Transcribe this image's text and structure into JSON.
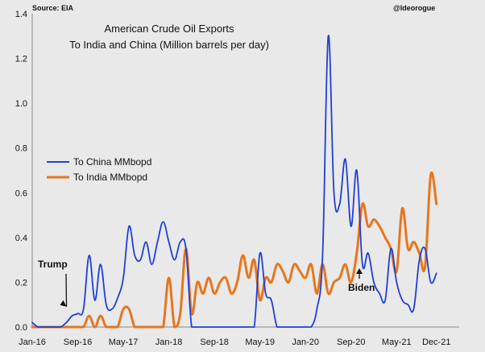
{
  "chart_data": {
    "type": "line",
    "title_lines": [
      "American Crude Oil Exports",
      "To India and China (Million barrels per day)"
    ],
    "source": "Source: EIA",
    "credit": "@ldeorogue",
    "x_tick_labels": [
      "Jan-16",
      "Sep-16",
      "May-17",
      "Jan-18",
      "Sep-18",
      "May-19",
      "Jan-20",
      "Sep-20",
      "May-21",
      "Dec-21"
    ],
    "x_tick_months": [
      0,
      8,
      16,
      24,
      32,
      40,
      48,
      56,
      64,
      71
    ],
    "y_tick_labels": [
      "0.0",
      "0.2",
      "0.4",
      "0.6",
      "0.8",
      "1.0",
      "1.2",
      "1.4"
    ],
    "ylim": [
      0,
      1.4
    ],
    "xlim_months": [
      0,
      75
    ],
    "grid": false,
    "legend_position": "middle-left",
    "annotations": [
      {
        "text": "Trump",
        "x_month": 6.3,
        "y": 0.08
      },
      {
        "text": "Biden",
        "x_month": 60.5,
        "y": 0.23
      }
    ],
    "series": [
      {
        "name": "To China MMbopd",
        "color": "#1f3fd6",
        "points": [
          [
            0,
            0.02
          ],
          [
            1,
            0.0
          ],
          [
            2,
            0.0
          ],
          [
            3,
            0.0
          ],
          [
            4,
            0.0
          ],
          [
            5,
            0.0
          ],
          [
            6,
            0.02
          ],
          [
            7,
            0.05
          ],
          [
            8,
            0.06
          ],
          [
            9,
            0.08
          ],
          [
            10,
            0.32
          ],
          [
            11,
            0.12
          ],
          [
            12,
            0.28
          ],
          [
            13,
            0.1
          ],
          [
            14,
            0.08
          ],
          [
            15,
            0.13
          ],
          [
            16,
            0.22
          ],
          [
            17,
            0.45
          ],
          [
            18,
            0.32
          ],
          [
            19,
            0.3
          ],
          [
            20,
            0.38
          ],
          [
            21,
            0.28
          ],
          [
            22,
            0.38
          ],
          [
            23,
            0.47
          ],
          [
            24,
            0.38
          ],
          [
            25,
            0.3
          ],
          [
            26,
            0.38
          ],
          [
            27,
            0.35
          ],
          [
            28,
            0.0
          ],
          [
            29,
            0.0
          ],
          [
            30,
            0.0
          ],
          [
            31,
            0.0
          ],
          [
            32,
            0.0
          ],
          [
            33,
            0.0
          ],
          [
            34,
            0.0
          ],
          [
            35,
            0.0
          ],
          [
            36,
            0.0
          ],
          [
            37,
            0.0
          ],
          [
            38,
            0.0
          ],
          [
            39,
            0.0
          ],
          [
            40,
            0.33
          ],
          [
            41,
            0.15
          ],
          [
            42,
            0.12
          ],
          [
            43,
            0.0
          ],
          [
            44,
            0.0
          ],
          [
            45,
            0.0
          ],
          [
            46,
            0.0
          ],
          [
            47,
            0.0
          ],
          [
            48,
            0.0
          ],
          [
            49,
            0.0
          ],
          [
            50,
            0.08
          ],
          [
            51,
            0.32
          ],
          [
            52,
            1.3
          ],
          [
            53,
            0.6
          ],
          [
            54,
            0.55
          ],
          [
            55,
            0.75
          ],
          [
            56,
            0.45
          ],
          [
            57,
            0.7
          ],
          [
            58,
            0.28
          ],
          [
            59,
            0.33
          ],
          [
            60,
            0.2
          ],
          [
            61,
            0.15
          ],
          [
            62,
            0.12
          ],
          [
            63,
            0.35
          ],
          [
            64,
            0.2
          ],
          [
            65,
            0.12
          ],
          [
            66,
            0.1
          ],
          [
            67,
            0.08
          ],
          [
            68,
            0.3
          ],
          [
            69,
            0.35
          ],
          [
            70,
            0.2
          ],
          [
            71,
            0.24
          ]
        ]
      },
      {
        "name": "To India MMbopd",
        "color": "#e6761d",
        "points": [
          [
            0,
            0.0
          ],
          [
            1,
            0.0
          ],
          [
            2,
            0.0
          ],
          [
            3,
            0.0
          ],
          [
            4,
            0.0
          ],
          [
            5,
            0.0
          ],
          [
            6,
            0.0
          ],
          [
            7,
            0.0
          ],
          [
            8,
            0.0
          ],
          [
            9,
            0.0
          ],
          [
            10,
            0.05
          ],
          [
            11,
            0.0
          ],
          [
            12,
            0.05
          ],
          [
            13,
            0.0
          ],
          [
            14,
            0.0
          ],
          [
            15,
            0.0
          ],
          [
            16,
            0.08
          ],
          [
            17,
            0.08
          ],
          [
            18,
            0.0
          ],
          [
            19,
            0.0
          ],
          [
            20,
            0.0
          ],
          [
            21,
            0.0
          ],
          [
            22,
            0.0
          ],
          [
            23,
            0.0
          ],
          [
            24,
            0.22
          ],
          [
            25,
            0.0
          ],
          [
            26,
            0.06
          ],
          [
            27,
            0.35
          ],
          [
            28,
            0.06
          ],
          [
            29,
            0.2
          ],
          [
            30,
            0.15
          ],
          [
            31,
            0.22
          ],
          [
            32,
            0.15
          ],
          [
            33,
            0.2
          ],
          [
            34,
            0.22
          ],
          [
            35,
            0.15
          ],
          [
            36,
            0.2
          ],
          [
            37,
            0.32
          ],
          [
            38,
            0.22
          ],
          [
            39,
            0.3
          ],
          [
            40,
            0.12
          ],
          [
            41,
            0.22
          ],
          [
            42,
            0.2
          ],
          [
            43,
            0.28
          ],
          [
            44,
            0.25
          ],
          [
            45,
            0.2
          ],
          [
            46,
            0.28
          ],
          [
            47,
            0.25
          ],
          [
            48,
            0.22
          ],
          [
            49,
            0.28
          ],
          [
            50,
            0.15
          ],
          [
            51,
            0.28
          ],
          [
            52,
            0.15
          ],
          [
            53,
            0.2
          ],
          [
            54,
            0.22
          ],
          [
            55,
            0.28
          ],
          [
            56,
            0.2
          ],
          [
            57,
            0.33
          ],
          [
            58,
            0.55
          ],
          [
            59,
            0.45
          ],
          [
            60,
            0.48
          ],
          [
            61,
            0.45
          ],
          [
            62,
            0.4
          ],
          [
            63,
            0.35
          ],
          [
            64,
            0.25
          ],
          [
            65,
            0.53
          ],
          [
            66,
            0.35
          ],
          [
            67,
            0.38
          ],
          [
            68,
            0.33
          ],
          [
            69,
            0.27
          ],
          [
            70,
            0.68
          ],
          [
            71,
            0.55
          ]
        ]
      }
    ]
  }
}
